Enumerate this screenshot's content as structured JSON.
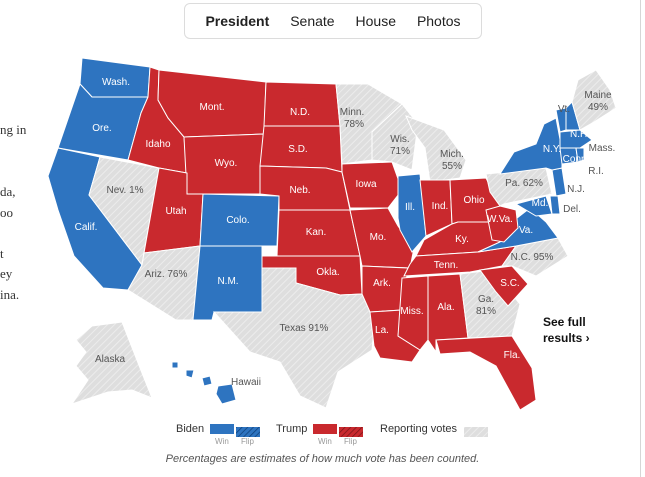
{
  "tabs": [
    {
      "label": "President",
      "active": true
    },
    {
      "label": "Senate",
      "active": false
    },
    {
      "label": "House",
      "active": false
    },
    {
      "label": "Photos",
      "active": false
    }
  ],
  "left_text_fragments": [
    "ng in",
    "da,",
    "oo",
    "t",
    "ey",
    "ina."
  ],
  "colors": {
    "biden": "#2e74c0",
    "trump": "#c9292e",
    "reporting": "#dedede",
    "hawaii": "#2e74c0"
  },
  "states": {
    "wash": {
      "label": "Wash.",
      "winner": "biden"
    },
    "ore": {
      "label": "Ore.",
      "winner": "biden"
    },
    "calif": {
      "label": "Calif.",
      "winner": "biden"
    },
    "nev": {
      "label": "Nev. 1%",
      "winner": "reporting"
    },
    "idaho": {
      "label": "Idaho",
      "winner": "trump"
    },
    "mont": {
      "label": "Mont.",
      "winner": "trump"
    },
    "wyo": {
      "label": "Wyo.",
      "winner": "trump"
    },
    "utah": {
      "label": "Utah",
      "winner": "trump"
    },
    "colo": {
      "label": "Colo.",
      "winner": "biden"
    },
    "ariz": {
      "label": "Ariz. 76%",
      "winner": "reporting"
    },
    "nm": {
      "label": "N.M.",
      "winner": "biden"
    },
    "nd": {
      "label": "N.D.",
      "winner": "trump"
    },
    "sd": {
      "label": "S.D.",
      "winner": "trump"
    },
    "neb": {
      "label": "Neb.",
      "winner": "trump"
    },
    "kan": {
      "label": "Kan.",
      "winner": "trump"
    },
    "okla": {
      "label": "Okla.",
      "winner": "trump"
    },
    "texas": {
      "label": "Texas 91%",
      "winner": "reporting"
    },
    "minn": {
      "label": "Minn. 78%",
      "winner": "reporting"
    },
    "iowa": {
      "label": "Iowa",
      "winner": "trump"
    },
    "mo": {
      "label": "Mo.",
      "winner": "trump"
    },
    "ark": {
      "label": "Ark.",
      "winner": "trump"
    },
    "la": {
      "label": "La.",
      "winner": "trump"
    },
    "wis": {
      "label": "Wis. 71%",
      "winner": "reporting"
    },
    "ill": {
      "label": "Ill.",
      "winner": "biden"
    },
    "mich": {
      "label": "Mich. 55%",
      "winner": "reporting"
    },
    "ind": {
      "label": "Ind.",
      "winner": "trump"
    },
    "ohio": {
      "label": "Ohio",
      "winner": "trump"
    },
    "ky": {
      "label": "Ky.",
      "winner": "trump"
    },
    "tenn": {
      "label": "Tenn.",
      "winner": "trump"
    },
    "miss": {
      "label": "Miss.",
      "winner": "trump"
    },
    "ala": {
      "label": "Ala.",
      "winner": "trump"
    },
    "ga": {
      "label": "Ga. 81%",
      "winner": "reporting"
    },
    "fla": {
      "label": "Fla.",
      "winner": "trump"
    },
    "sc": {
      "label": "S.C.",
      "winner": "trump"
    },
    "nc": {
      "label": "N.C. 95%",
      "winner": "reporting"
    },
    "va": {
      "label": "Va.",
      "winner": "biden"
    },
    "wva": {
      "label": "W.Va.",
      "winner": "trump"
    },
    "pa": {
      "label": "Pa. 62%",
      "winner": "reporting"
    },
    "ny": {
      "label": "N.Y.",
      "winner": "biden"
    },
    "md": {
      "label": "Md.",
      "winner": "biden"
    },
    "del": {
      "label": "Del.",
      "winner": "biden"
    },
    "nj": {
      "label": "N.J.",
      "winner": "biden"
    },
    "conn": {
      "label": "Conn.",
      "winner": "biden"
    },
    "ri": {
      "label": "R.I.",
      "winner": "biden"
    },
    "mass": {
      "label": "Mass.",
      "winner": "biden"
    },
    "vt": {
      "label": "Vt.",
      "winner": "biden"
    },
    "nh": {
      "label": "N.H.",
      "winner": "biden"
    },
    "maine": {
      "label": "Maine 49%",
      "winner": "reporting"
    },
    "alaska": {
      "label": "Alaska",
      "winner": "reporting"
    },
    "hawaii": {
      "label": "Hawaii",
      "winner": "biden"
    }
  },
  "see_full": {
    "line1": "See full",
    "line2": "results ›"
  },
  "legend": {
    "biden": "Biden",
    "trump": "Trump",
    "reporting": "Reporting votes",
    "win": "Win",
    "flip": "Flip"
  },
  "footnote": "Percentages are estimates of how much vote has been counted."
}
